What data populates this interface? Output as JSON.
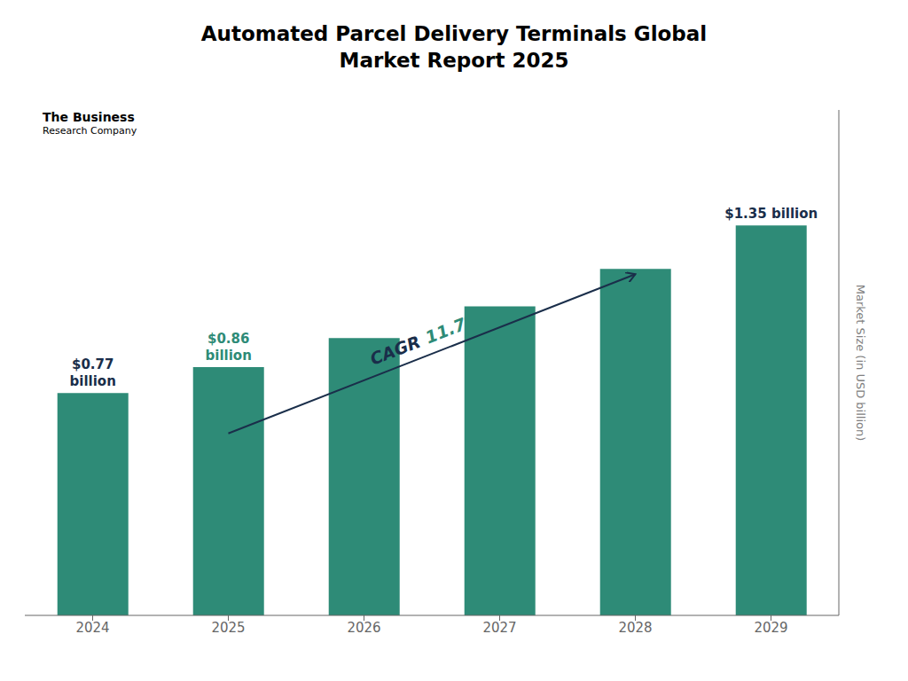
{
  "chart_data": {
    "type": "bar",
    "title": "Automated Parcel Delivery Terminals Global\nMarket Report 2025",
    "categories": [
      "2024",
      "2025",
      "2026",
      "2027",
      "2028",
      "2029"
    ],
    "values": [
      0.77,
      0.86,
      0.96,
      1.07,
      1.2,
      1.35
    ],
    "color": "#2e8b77",
    "y_label": "Market Size (in USD billion)",
    "ylim": [
      0,
      1.75
    ],
    "tick_labels": "x",
    "grid": false,
    "annotations": [
      {
        "x": "2024",
        "text": "$0.77\nbillion",
        "color": "#1a2e4a"
      },
      {
        "x": "2025",
        "text": "$0.86\nbillion",
        "color": "#2e8b77"
      },
      {
        "x": "2029",
        "text": "$1.35 billion",
        "color": "#1a2e4a"
      }
    ],
    "cagr": [
      {
        "text": "CAGR",
        "color": "#1a2e4a"
      },
      {
        "text": "11.7%",
        "color": "#2e8b77"
      }
    ],
    "logo": [
      "The Business",
      "Research Company"
    ]
  }
}
